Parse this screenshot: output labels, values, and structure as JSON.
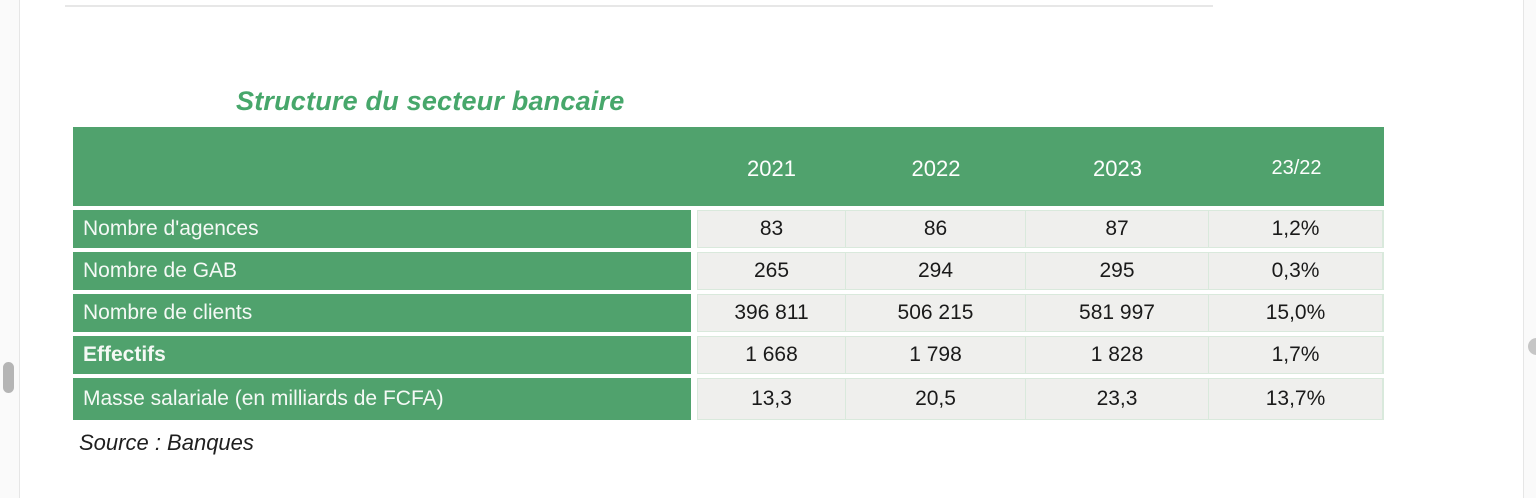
{
  "viewer": {
    "left_scrollbar": "vertical-scrollbar-thumb",
    "right_scrollbar": "vertical-scrollbar-thumb"
  },
  "colors": {
    "table_green": "#50a26d",
    "title_green": "#47a76b",
    "cell_background": "#efefed",
    "cell_border": "#d9e9dc",
    "header_text": "#ffffff",
    "body_text": "#1a1a1a"
  },
  "chart_data": {
    "type": "table",
    "title": "Structure du secteur bancaire",
    "columns": [
      "",
      "2021",
      "2022",
      "2023",
      "23/22"
    ],
    "rows": [
      {
        "label": "Nombre d'agences",
        "values": [
          "83",
          "86",
          "87",
          "1,2%"
        ]
      },
      {
        "label": "Nombre de GAB",
        "values": [
          "265",
          "294",
          "295",
          "0,3%"
        ]
      },
      {
        "label": "Nombre de clients",
        "values": [
          "396 811",
          "506 215",
          "581 997",
          "15,0%"
        ]
      },
      {
        "label": "Effectifs",
        "values": [
          "1 668",
          "1 798",
          "1 828",
          "1,7%"
        ],
        "emphasis": true
      },
      {
        "label": "Masse salariale (en milliards de FCFA)",
        "values": [
          "13,3",
          "20,5",
          "23,3",
          "13,7%"
        ]
      }
    ],
    "source": "Source : Banques"
  }
}
